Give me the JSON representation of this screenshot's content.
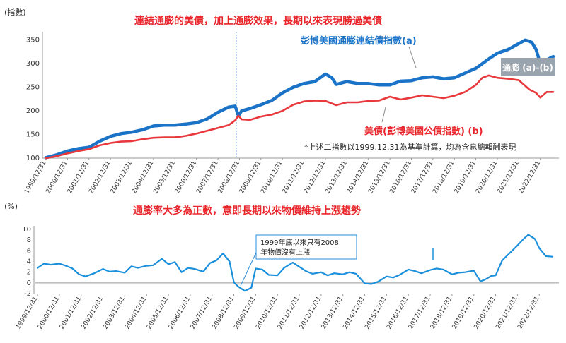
{
  "chart_data": [
    {
      "type": "line",
      "title": "連結通膨的美債，加上通膨效果，長期以來表現勝過美債",
      "ylabel": "(指數)",
      "ylim": [
        100,
        360
      ],
      "yticks": [
        100,
        150,
        200,
        250,
        300,
        350
      ],
      "xticks": [
        "1999/12/31",
        "2000/12/31",
        "2001/12/31",
        "2002/12/31",
        "2003/12/31",
        "2004/12/31",
        "2005/12/31",
        "2006/12/31",
        "2007/12/31",
        "2008/12/31",
        "2009/12/31",
        "2010/12/31",
        "2011/12/31",
        "2012/12/31",
        "2013/12/31",
        "2014/12/31",
        "2015/12/31",
        "2016/12/31",
        "2017/12/31",
        "2018/12/31",
        "2019/12/31",
        "2020/12/31",
        "2021/12/31",
        "2022/12/31"
      ],
      "x_range": [
        1999.9,
        2023.7
      ],
      "grid": false,
      "series": [
        {
          "name": "彭博美國通膨連結債指數(a)",
          "color": "#1a73c7",
          "x": [
            2000.0,
            2000.5,
            2001.0,
            2001.5,
            2002.0,
            2002.5,
            2003.0,
            2003.5,
            2004.0,
            2004.5,
            2005.0,
            2005.5,
            2006.0,
            2006.5,
            2007.0,
            2007.5,
            2008.0,
            2008.5,
            2008.8,
            2008.95,
            2009.1,
            2009.5,
            2010.0,
            2010.5,
            2011.0,
            2011.5,
            2012.0,
            2012.5,
            2013.0,
            2013.3,
            2013.5,
            2014.0,
            2014.5,
            2015.0,
            2015.5,
            2016.0,
            2016.5,
            2017.0,
            2017.5,
            2018.0,
            2018.5,
            2019.0,
            2019.5,
            2020.0,
            2020.3,
            2020.6,
            2021.0,
            2021.5,
            2021.9,
            2022.3,
            2022.6,
            2022.8,
            2023.0,
            2023.3,
            2023.6
          ],
          "values": [
            101,
            107,
            115,
            120,
            123,
            136,
            146,
            152,
            155,
            160,
            168,
            170,
            170,
            172,
            175,
            183,
            197,
            208,
            210,
            190,
            200,
            205,
            213,
            222,
            238,
            250,
            258,
            262,
            278,
            270,
            256,
            262,
            258,
            258,
            255,
            255,
            263,
            264,
            270,
            272,
            268,
            270,
            280,
            290,
            300,
            310,
            322,
            330,
            340,
            350,
            345,
            330,
            300,
            308,
            315
          ]
        },
        {
          "name": "美債(彭博美國公債指數) (b)",
          "color": "#e8383c",
          "x": [
            2000.0,
            2000.5,
            2001.0,
            2001.5,
            2002.0,
            2002.5,
            2003.0,
            2003.5,
            2004.0,
            2004.5,
            2005.0,
            2005.5,
            2006.0,
            2006.5,
            2007.0,
            2007.5,
            2008.0,
            2008.5,
            2008.8,
            2008.95,
            2009.1,
            2009.5,
            2010.0,
            2010.5,
            2011.0,
            2011.5,
            2012.0,
            2012.5,
            2013.0,
            2013.5,
            2014.0,
            2014.5,
            2015.0,
            2015.5,
            2016.0,
            2016.5,
            2017.0,
            2017.5,
            2018.0,
            2018.5,
            2019.0,
            2019.5,
            2020.0,
            2020.3,
            2020.6,
            2021.0,
            2021.5,
            2022.0,
            2022.5,
            2022.8,
            2023.0,
            2023.3,
            2023.6
          ],
          "values": [
            100,
            104,
            110,
            115,
            119,
            127,
            132,
            135,
            136,
            140,
            143,
            144,
            144,
            147,
            152,
            158,
            164,
            170,
            180,
            190,
            182,
            181,
            188,
            192,
            200,
            213,
            220,
            222,
            221,
            212,
            218,
            218,
            221,
            222,
            230,
            224,
            228,
            233,
            230,
            227,
            232,
            240,
            255,
            270,
            275,
            270,
            268,
            265,
            245,
            238,
            228,
            240,
            240
          ]
        }
      ],
      "annotations": {
        "spread_label": "通膨 (a)-(b)",
        "note": "*上述二指數以1999.12.31為基準計算，均為含息總報酬表現",
        "divider_x": 2008.85
      }
    },
    {
      "type": "line",
      "title": "通膨率大多為正數，意即長期以來物價維持上漲趨勢",
      "ylabel": "(%)",
      "ylim": [
        -2,
        10
      ],
      "yticks": [
        -2,
        0,
        2,
        4,
        6,
        8,
        10
      ],
      "xticks": [
        "1999/12/31",
        "2000/12/31",
        "2001/12/31",
        "2002/12/31",
        "2003/12/31",
        "2004/12/31",
        "2005/12/31",
        "2006/12/31",
        "2007/12/31",
        "2008/12/31",
        "2009/12/31",
        "2010/12/31",
        "2011/12/31",
        "2012/12/31",
        "2013/12/31",
        "2014/12/31",
        "2015/12/31",
        "2016/12/31",
        "2017/12/31",
        "2018/12/31",
        "2019/12/31",
        "2020/12/31",
        "2021/12/31",
        "2022/12/31"
      ],
      "x_range": [
        1999.9,
        2023.9
      ],
      "grid": false,
      "series": [
        {
          "name": "通膨率",
          "color": "#1a8fdc",
          "x": [
            2000.0,
            2000.3,
            2000.6,
            2001.0,
            2001.3,
            2001.6,
            2001.9,
            2002.2,
            2002.6,
            2003.0,
            2003.3,
            2003.6,
            2004.0,
            2004.3,
            2004.6,
            2005.0,
            2005.3,
            2005.7,
            2006.0,
            2006.3,
            2006.6,
            2006.9,
            2007.2,
            2007.6,
            2007.9,
            2008.2,
            2008.5,
            2008.8,
            2009.0,
            2009.2,
            2009.5,
            2009.8,
            2010.0,
            2010.3,
            2010.6,
            2011.0,
            2011.3,
            2011.7,
            2012.0,
            2012.3,
            2012.6,
            2013.0,
            2013.3,
            2013.6,
            2014.0,
            2014.3,
            2014.6,
            2015.0,
            2015.3,
            2015.6,
            2016.0,
            2016.3,
            2016.6,
            2017.0,
            2017.3,
            2017.6,
            2018.0,
            2018.3,
            2018.6,
            2019.0,
            2019.3,
            2019.6,
            2020.0,
            2020.3,
            2020.5,
            2020.8,
            2021.0,
            2021.3,
            2021.6,
            2022.0,
            2022.3,
            2022.5,
            2022.8,
            2023.0,
            2023.3,
            2023.6
          ],
          "values": [
            2.8,
            3.6,
            3.4,
            3.6,
            3.2,
            2.7,
            1.6,
            1.2,
            1.8,
            2.6,
            2.1,
            2.2,
            1.9,
            3.1,
            2.8,
            3.2,
            3.3,
            4.5,
            3.5,
            3.9,
            2.0,
            2.8,
            2.6,
            2.1,
            3.7,
            4.2,
            5.5,
            4.0,
            0.1,
            -0.7,
            -1.5,
            -0.9,
            2.7,
            2.5,
            1.5,
            1.4,
            2.8,
            3.8,
            3.0,
            2.2,
            1.7,
            2.0,
            1.4,
            1.8,
            1.6,
            2.0,
            1.7,
            -0.1,
            -0.2,
            0.2,
            1.2,
            1.0,
            1.5,
            2.5,
            2.2,
            1.8,
            2.4,
            2.7,
            2.5,
            1.6,
            1.9,
            2.0,
            2.3,
            0.3,
            0.6,
            1.3,
            1.4,
            4.2,
            5.4,
            7.0,
            8.3,
            9.0,
            8.2,
            6.5,
            5.0,
            4.9
          ]
        }
      ],
      "annotations": {
        "callout_line1": "1999年底以來只有2008",
        "callout_line2": "年物價沒有上漲"
      }
    }
  ]
}
